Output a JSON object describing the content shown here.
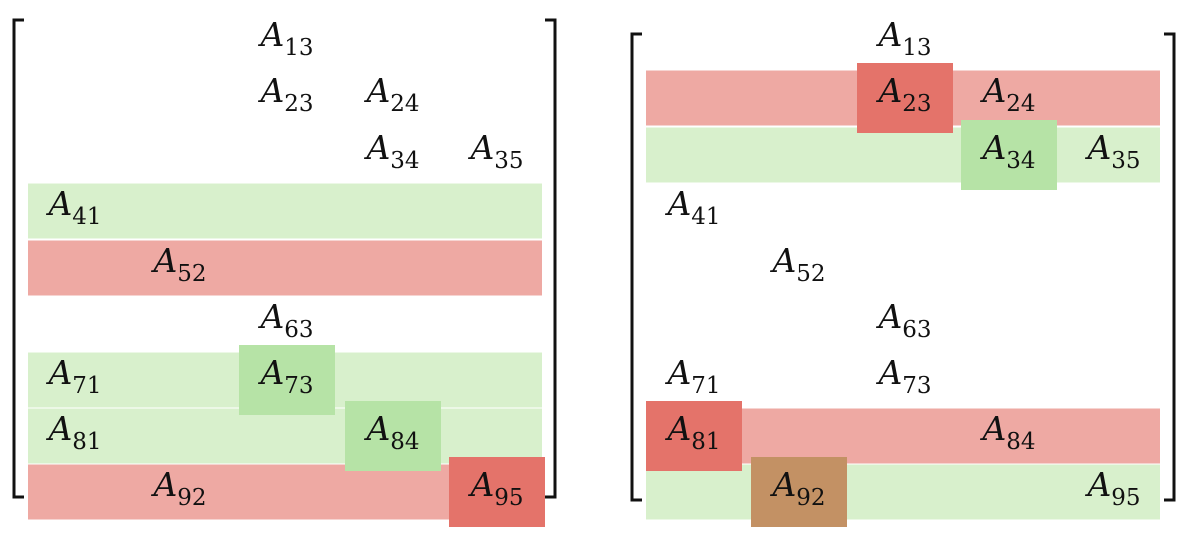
{
  "colors": {
    "green_band": "#d8f0cc",
    "green_cell": "#b6e3a6",
    "red_band": "#eea9a3",
    "red_cell": "#e4736a",
    "overlap_cell": "#c39164",
    "bracket": "#111111"
  },
  "matrices": [
    {
      "entries": [
        {
          "var": "A",
          "sub": "13",
          "row": 1,
          "col": 3
        },
        {
          "var": "A",
          "sub": "23",
          "row": 2,
          "col": 3
        },
        {
          "var": "A",
          "sub": "24",
          "row": 2,
          "col": 4
        },
        {
          "var": "A",
          "sub": "34",
          "row": 3,
          "col": 4
        },
        {
          "var": "A",
          "sub": "35",
          "row": 3,
          "col": 5
        },
        {
          "var": "A",
          "sub": "41",
          "row": 4,
          "col": 1
        },
        {
          "var": "A",
          "sub": "52",
          "row": 5,
          "col": 2
        },
        {
          "var": "A",
          "sub": "63",
          "row": 6,
          "col": 3
        },
        {
          "var": "A",
          "sub": "71",
          "row": 7,
          "col": 1
        },
        {
          "var": "A",
          "sub": "73",
          "row": 7,
          "col": 3
        },
        {
          "var": "A",
          "sub": "81",
          "row": 8,
          "col": 1
        },
        {
          "var": "A",
          "sub": "84",
          "row": 8,
          "col": 4
        },
        {
          "var": "A",
          "sub": "92",
          "row": 9,
          "col": 2
        },
        {
          "var": "A",
          "sub": "95",
          "row": 9,
          "col": 5
        }
      ],
      "row_highlights": [
        {
          "row": 4,
          "color": "green"
        },
        {
          "row": 5,
          "color": "red"
        },
        {
          "row": 7,
          "color": "green"
        },
        {
          "row": 8,
          "color": "green"
        },
        {
          "row": 9,
          "color": "red"
        }
      ],
      "cell_highlights": [
        {
          "row": 7,
          "col": 3,
          "color": "green"
        },
        {
          "row": 8,
          "col": 4,
          "color": "green"
        },
        {
          "row": 9,
          "col": 5,
          "color": "red"
        }
      ]
    },
    {
      "entries": [
        {
          "var": "A",
          "sub": "13",
          "row": 1,
          "col": 3
        },
        {
          "var": "A",
          "sub": "23",
          "row": 2,
          "col": 3
        },
        {
          "var": "A",
          "sub": "24",
          "row": 2,
          "col": 4
        },
        {
          "var": "A",
          "sub": "34",
          "row": 3,
          "col": 4
        },
        {
          "var": "A",
          "sub": "35",
          "row": 3,
          "col": 5
        },
        {
          "var": "A",
          "sub": "41",
          "row": 4,
          "col": 1
        },
        {
          "var": "A",
          "sub": "52",
          "row": 5,
          "col": 2
        },
        {
          "var": "A",
          "sub": "63",
          "row": 6,
          "col": 3
        },
        {
          "var": "A",
          "sub": "71",
          "row": 7,
          "col": 1
        },
        {
          "var": "A",
          "sub": "73",
          "row": 7,
          "col": 3
        },
        {
          "var": "A",
          "sub": "81",
          "row": 8,
          "col": 1
        },
        {
          "var": "A",
          "sub": "84",
          "row": 8,
          "col": 4
        },
        {
          "var": "A",
          "sub": "92",
          "row": 9,
          "col": 2
        },
        {
          "var": "A",
          "sub": "95",
          "row": 9,
          "col": 5
        }
      ],
      "row_highlights": [
        {
          "row": 2,
          "color": "red"
        },
        {
          "row": 3,
          "color": "green"
        },
        {
          "row": 8,
          "color": "red"
        },
        {
          "row": 9,
          "color": "green"
        }
      ],
      "cell_highlights": [
        {
          "row": 2,
          "col": 3,
          "color": "red"
        },
        {
          "row": 3,
          "col": 4,
          "color": "green"
        },
        {
          "row": 8,
          "col": 1,
          "color": "red"
        },
        {
          "row": 9,
          "col": 2,
          "color": "overlap"
        }
      ]
    }
  ]
}
